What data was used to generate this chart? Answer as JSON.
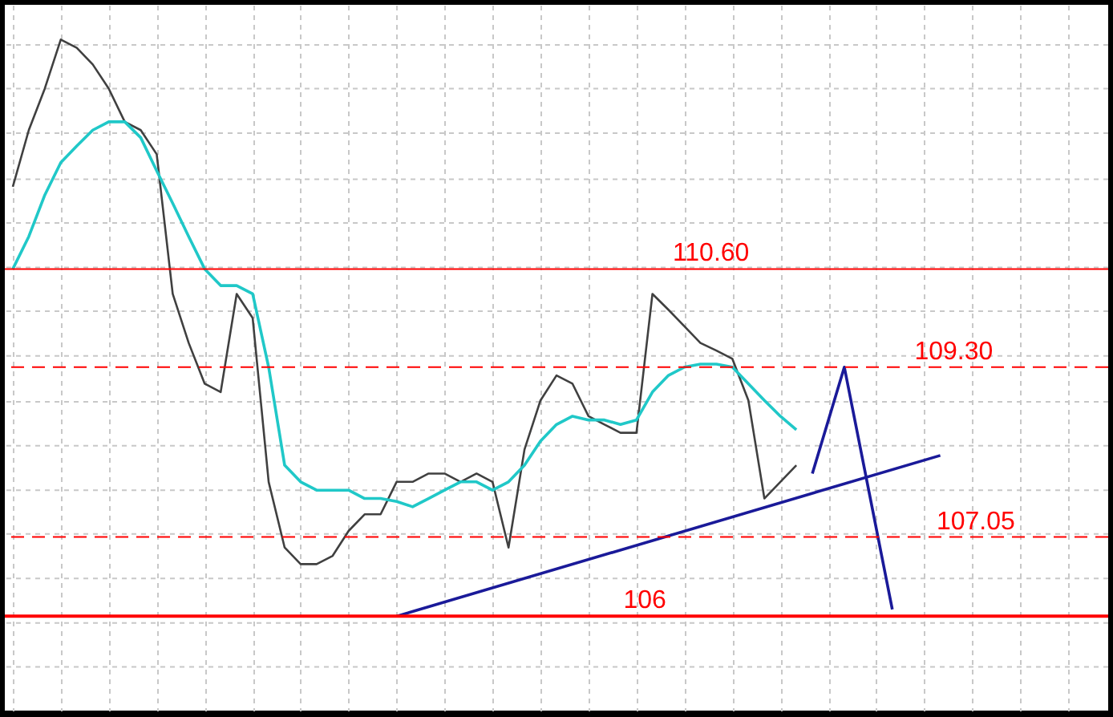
{
  "chart_data": {
    "type": "line",
    "categories": [
      null,
      null,
      null,
      null,
      null,
      null,
      null,
      null,
      null,
      null,
      null,
      null,
      null,
      null,
      null,
      null,
      null,
      null,
      null,
      null,
      null,
      null,
      null,
      null,
      null,
      null,
      null,
      null,
      null,
      null,
      null,
      null,
      null,
      null,
      null,
      null,
      null,
      null,
      null,
      null,
      null,
      null,
      null,
      null,
      null,
      null,
      null,
      null,
      null,
      null,
      null,
      null,
      null,
      null,
      null,
      null,
      null,
      null,
      null,
      null,
      null,
      null,
      null,
      null,
      null,
      null,
      null,
      null,
      null
    ],
    "series": [
      {
        "color": "#404040",
        "values": [
          111.69,
          112.44,
          112.99,
          113.64,
          113.53,
          113.31,
          112.99,
          112.55,
          112.44,
          112.12,
          110.27,
          109.62,
          109.08,
          108.97,
          110.27,
          109.95,
          107.78,
          106.91,
          106.69,
          106.69,
          106.8,
          107.13,
          107.35,
          107.35,
          107.78,
          107.78,
          107.89,
          107.89,
          107.78,
          107.89,
          107.78,
          106.91,
          108.21,
          108.86,
          109.19,
          109.08,
          108.65,
          108.54,
          108.43,
          108.43,
          110.27,
          110.06,
          109.84,
          109.62,
          109.52,
          109.41,
          108.86,
          107.56,
          107.78,
          108.0,
          null,
          null,
          null,
          null,
          null,
          null,
          null,
          null,
          null,
          null,
          null,
          null,
          null,
          null,
          null,
          null,
          null,
          null,
          null
        ]
      },
      {
        "color": "#20c8c8",
        "values": [
          110.6,
          111.03,
          111.58,
          112.01,
          112.23,
          112.44,
          112.55,
          112.55,
          112.34,
          111.9,
          111.47,
          111.03,
          110.6,
          110.38,
          110.38,
          110.27,
          109.3,
          108.0,
          107.78,
          107.67,
          107.67,
          107.67,
          107.56,
          107.56,
          107.52,
          107.45,
          107.56,
          107.67,
          107.78,
          107.78,
          107.67,
          107.78,
          108.0,
          108.32,
          108.54,
          108.65,
          108.6,
          108.6,
          108.54,
          108.6,
          108.97,
          109.19,
          109.3,
          109.34,
          109.34,
          109.3,
          109.08,
          108.86,
          108.65,
          108.47,
          null,
          null,
          null,
          null,
          null,
          null,
          null,
          null,
          null,
          null,
          null,
          null,
          null,
          null,
          null,
          null,
          null,
          null,
          null
        ]
      },
      {
        "color": "#1a1a99",
        "values": [
          null,
          null,
          null,
          null,
          null,
          null,
          null,
          null,
          null,
          null,
          null,
          null,
          null,
          null,
          null,
          null,
          null,
          null,
          null,
          null,
          null,
          null,
          null,
          null,
          106.0,
          null,
          null,
          null,
          null,
          null,
          null,
          null,
          null,
          null,
          null,
          null,
          null,
          null,
          null,
          null,
          null,
          null,
          null,
          null,
          null,
          null,
          null,
          null,
          null,
          null,
          null,
          null,
          null,
          null,
          null,
          null,
          null,
          null,
          108.13,
          null,
          null,
          null,
          null,
          null,
          null,
          null,
          null,
          null,
          null
        ]
      },
      {
        "color": "#1a1a99",
        "values": [
          null,
          null,
          null,
          null,
          null,
          null,
          null,
          null,
          null,
          null,
          null,
          null,
          null,
          null,
          null,
          null,
          null,
          null,
          null,
          null,
          null,
          null,
          null,
          null,
          null,
          null,
          null,
          null,
          null,
          null,
          null,
          null,
          null,
          null,
          null,
          null,
          null,
          null,
          null,
          null,
          null,
          null,
          null,
          null,
          null,
          null,
          null,
          null,
          null,
          null,
          107.89,
          null,
          109.3,
          null,
          null,
          106.09,
          null,
          null,
          null,
          null,
          null,
          null,
          null,
          null,
          null,
          null,
          null,
          null,
          null
        ]
      }
    ],
    "ylim": [
      104.75,
      114.1
    ],
    "yticks": [
      {
        "value": 113.57,
        "label": null
      },
      {
        "value": 112.99,
        "label": null
      },
      {
        "value": 112.4,
        "label": null
      },
      {
        "value": 111.79,
        "label": null
      },
      {
        "value": 111.21,
        "label": null
      },
      {
        "value": 110.62,
        "label": null
      },
      {
        "value": 110.04,
        "label": null
      },
      {
        "value": 109.45,
        "label": null
      },
      {
        "value": 108.84,
        "label": null
      },
      {
        "value": 108.26,
        "label": null
      },
      {
        "value": 107.67,
        "label": null
      },
      {
        "value": 107.09,
        "label": null
      },
      {
        "value": 106.5,
        "label": null
      },
      {
        "value": 105.91,
        "label": null
      },
      {
        "value": 105.33,
        "label": null
      }
    ],
    "ref_lines": [
      {
        "axis": "y",
        "value": 110.6,
        "label": "110.60",
        "color": "#ff0000"
      },
      {
        "axis": "y",
        "value": 109.3,
        "label": "109.30",
        "color": "#ff0000",
        "line_style": "dashed"
      },
      {
        "axis": "y",
        "value": 107.05,
        "label": "107.05",
        "color": "#ff0000",
        "line_style": "dashed"
      },
      {
        "axis": "y",
        "value": 106,
        "label": "106",
        "color": "#ff0000"
      }
    ],
    "grid": true,
    "tick_labels": false
  }
}
